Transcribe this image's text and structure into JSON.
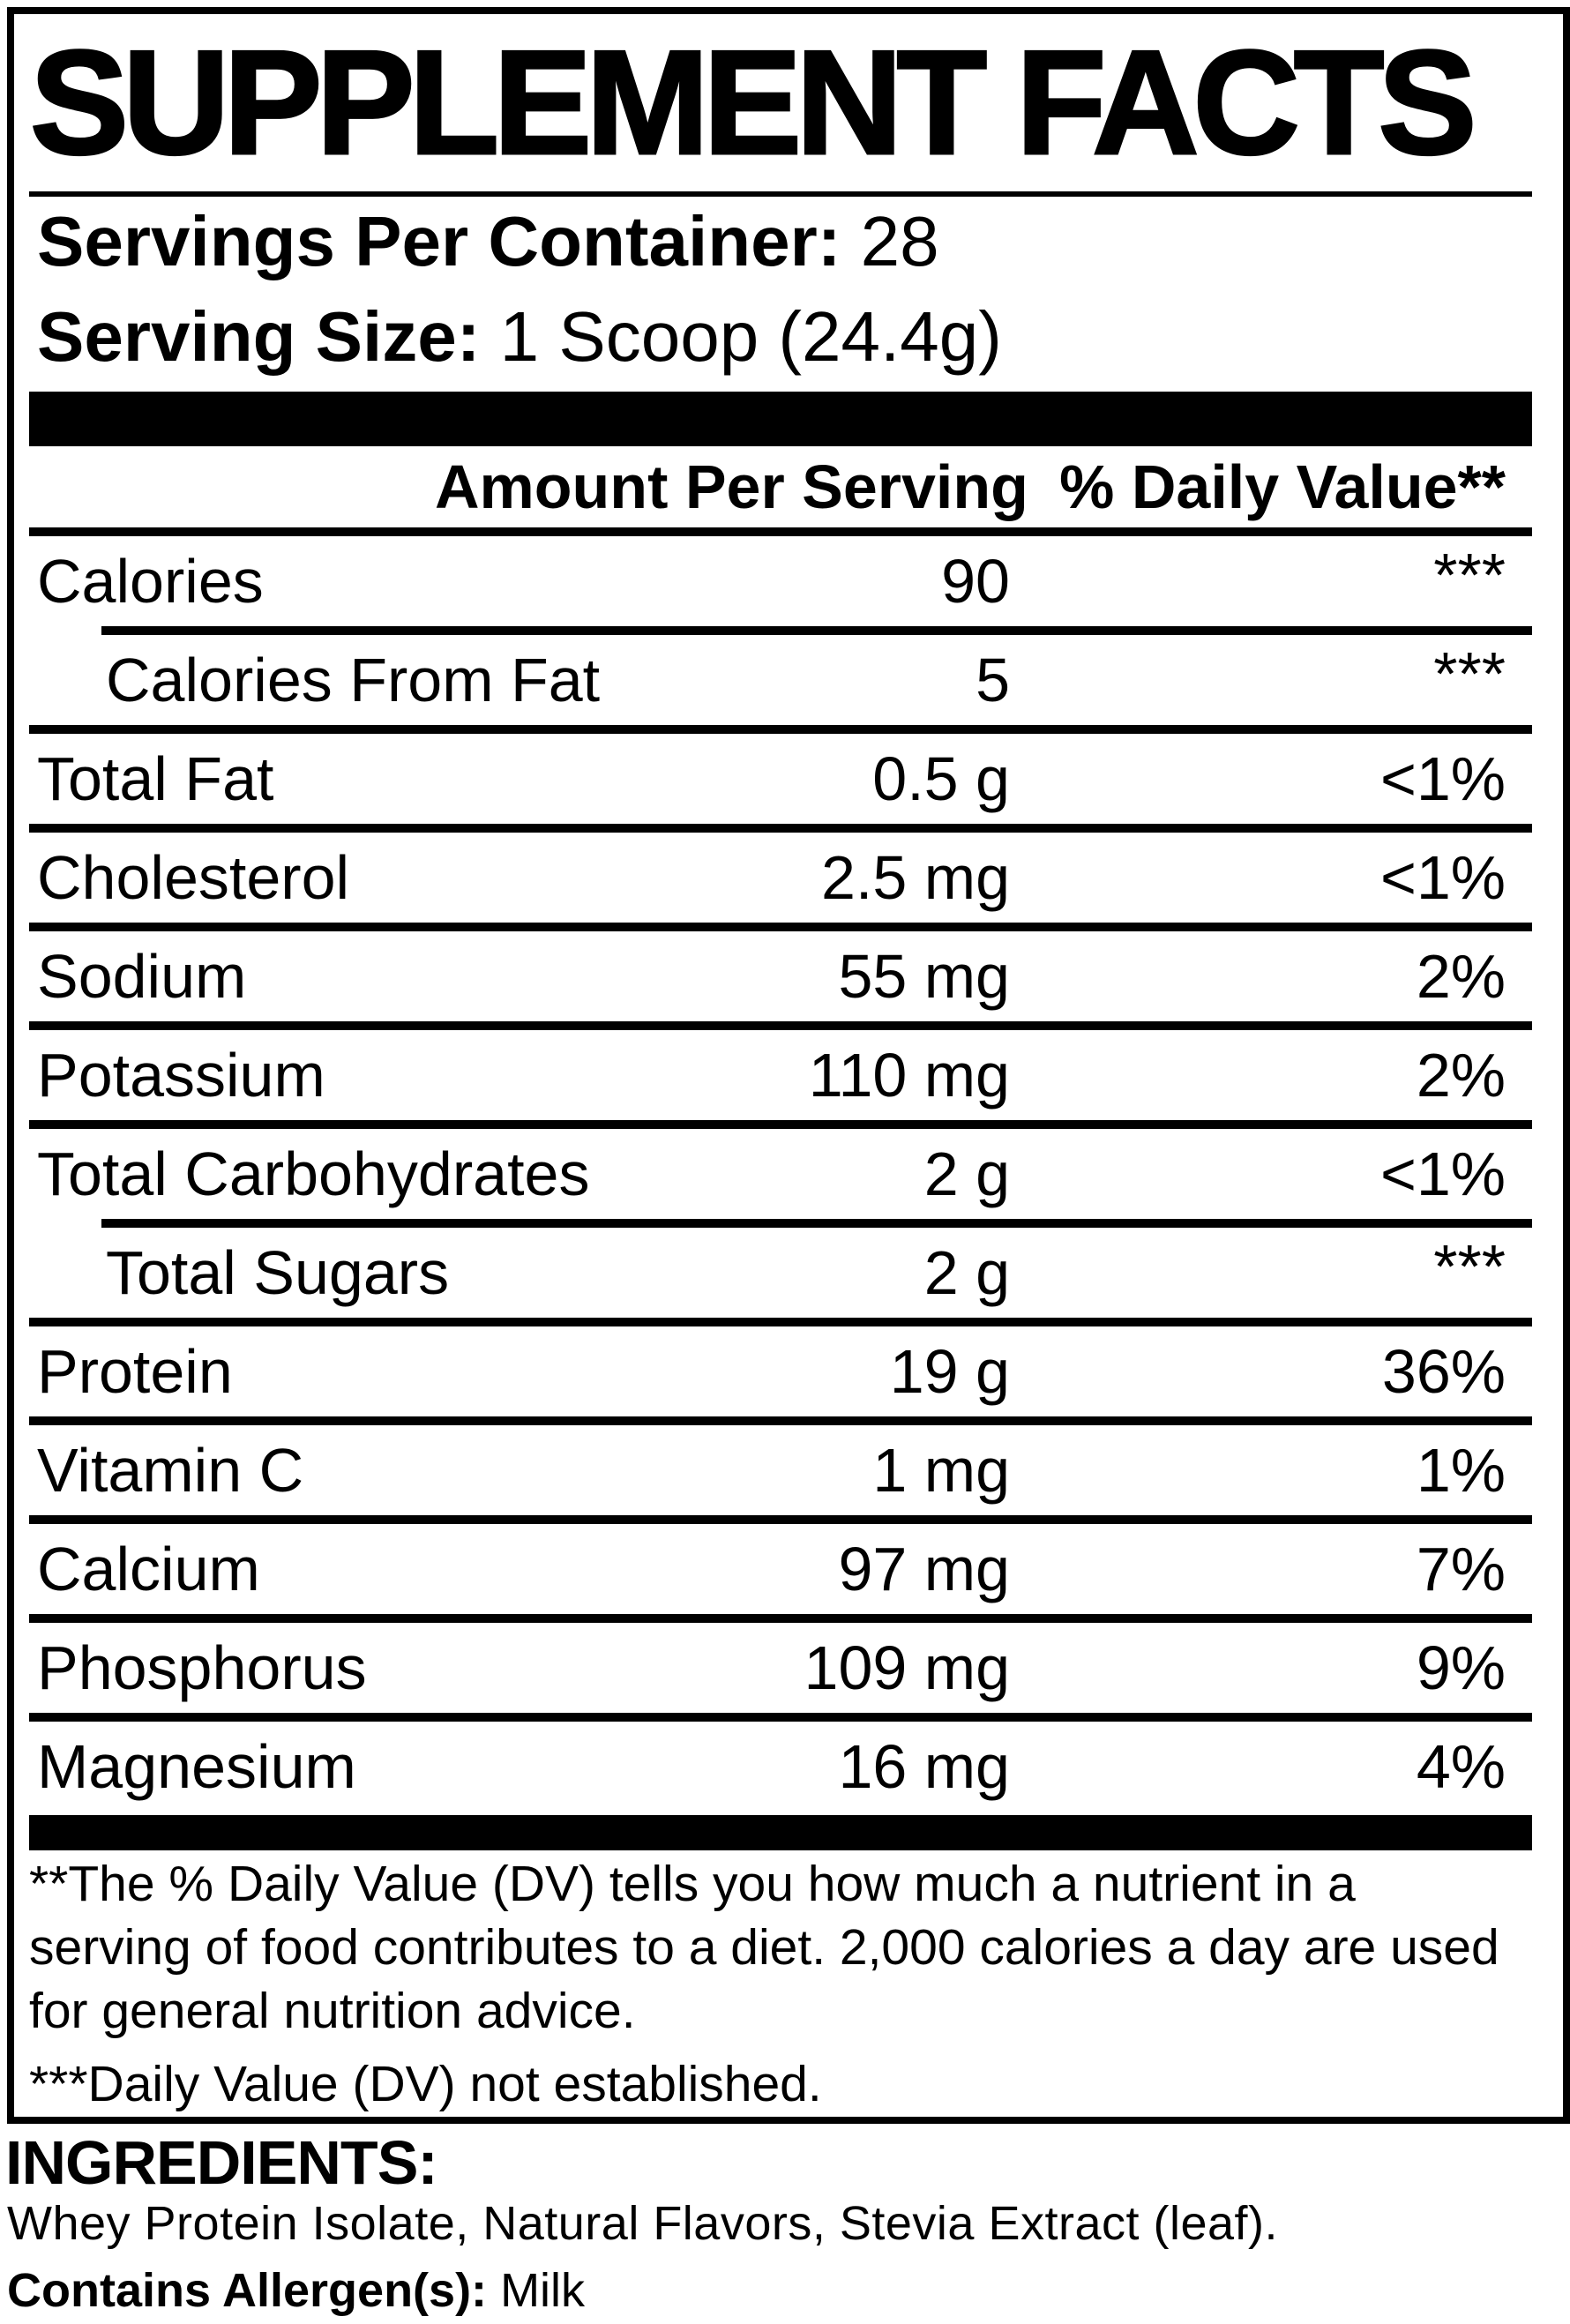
{
  "colors": {
    "ink": "#000000",
    "paper": "#ffffff"
  },
  "title": "SUPPLEMENT FACTS",
  "serving": {
    "servings_label": "Servings Per Container:",
    "servings_value": "28",
    "size_label": "Serving Size:",
    "size_value": "1 Scoop (24.4g)"
  },
  "table": {
    "amount_header": "Amount Per Serving",
    "dv_header": "% Daily Value**",
    "rows": [
      {
        "name": "Calories",
        "amount": "90",
        "dv": "***",
        "dv_sup": true,
        "indent": false,
        "sep_after": "indent"
      },
      {
        "name": "Calories From Fat",
        "amount": "5",
        "dv": "***",
        "dv_sup": true,
        "indent": true,
        "sep_after": "full"
      },
      {
        "name": "Total Fat",
        "amount": "0.5 g",
        "dv": "<1%",
        "dv_sup": false,
        "indent": false,
        "sep_after": "full"
      },
      {
        "name": "Cholesterol",
        "amount": "2.5 mg",
        "dv": "<1%",
        "dv_sup": false,
        "indent": false,
        "sep_after": "full"
      },
      {
        "name": "Sodium",
        "amount": "55 mg",
        "dv": "2%",
        "dv_sup": false,
        "indent": false,
        "sep_after": "full"
      },
      {
        "name": "Potassium",
        "amount": "110 mg",
        "dv": "2%",
        "dv_sup": false,
        "indent": false,
        "sep_after": "full"
      },
      {
        "name": "Total Carbohydrates",
        "amount": "2 g",
        "dv": "<1%",
        "dv_sup": false,
        "indent": false,
        "sep_after": "indent"
      },
      {
        "name": "Total Sugars",
        "amount": "2 g",
        "dv": "***",
        "dv_sup": true,
        "indent": true,
        "sep_after": "full"
      },
      {
        "name": "Protein",
        "amount": "19 g",
        "dv": "36%",
        "dv_sup": false,
        "indent": false,
        "sep_after": "full"
      },
      {
        "name": "Vitamin C",
        "amount": "1 mg",
        "dv": "1%",
        "dv_sup": false,
        "indent": false,
        "sep_after": "full"
      },
      {
        "name": "Calcium",
        "amount": "97 mg",
        "dv": "7%",
        "dv_sup": false,
        "indent": false,
        "sep_after": "full"
      },
      {
        "name": "Phosphorus",
        "amount": "109 mg",
        "dv": "9%",
        "dv_sup": false,
        "indent": false,
        "sep_after": "full"
      },
      {
        "name": "Magnesium",
        "amount": "16 mg",
        "dv": "4%",
        "dv_sup": false,
        "indent": false,
        "sep_after": "none"
      }
    ]
  },
  "footnotes": {
    "dv_note": "**The % Daily Value (DV) tells you how much a nutrient in a serving of food contributes to a diet. 2,000 calories a day are used for general nutrition advice.",
    "not_established": "***Daily Value (DV) not established."
  },
  "ingredients": {
    "heading": "INGREDIENTS:",
    "list": "Whey Protein Isolate, Natural Flavors, Stevia Extract (leaf).",
    "allergen_label": "Contains Allergen(s):",
    "allergen_value": "Milk"
  }
}
